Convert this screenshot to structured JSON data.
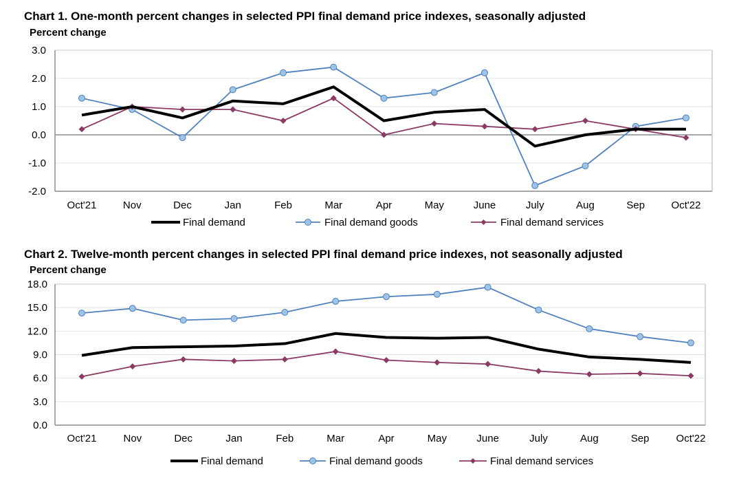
{
  "chart_data": [
    {
      "type": "line",
      "title": "Chart 1. One-month percent changes in selected PPI final demand price indexes, seasonally adjusted",
      "ylabel": "Percent change",
      "xlabel": "",
      "categories": [
        "Oct'21",
        "Nov",
        "Dec",
        "Jan",
        "Feb",
        "Mar",
        "Apr",
        "May",
        "June",
        "July",
        "Aug",
        "Sep",
        "Oct'22"
      ],
      "ylim": [
        -2.0,
        3.0
      ],
      "yticks": [
        "3.0",
        "2.0",
        "1.0",
        "0.0",
        "-1.0",
        "-2.0"
      ],
      "ytick_values": [
        3,
        2,
        1,
        0,
        -1,
        -2
      ],
      "grid": true,
      "legend_position": "bottom",
      "series": [
        {
          "name": "Final demand",
          "color": "#000000",
          "marker": "none",
          "values": [
            0.7,
            1.0,
            0.6,
            1.2,
            1.1,
            1.7,
            0.5,
            0.8,
            0.9,
            -0.4,
            0.0,
            0.2,
            0.2
          ]
        },
        {
          "name": "Final demand goods",
          "color": "#4f81bd",
          "marker": "circle",
          "marker_fill": "#9dc3e6",
          "values": [
            1.3,
            0.9,
            -0.1,
            1.6,
            2.2,
            2.4,
            1.3,
            1.5,
            2.2,
            -1.8,
            -1.1,
            0.3,
            0.6
          ]
        },
        {
          "name": "Final demand services",
          "color": "#8b3a62",
          "marker": "diamond",
          "values": [
            0.2,
            1.0,
            0.9,
            0.9,
            0.5,
            1.3,
            0.0,
            0.4,
            0.3,
            0.2,
            0.5,
            0.2,
            -0.1
          ]
        }
      ]
    },
    {
      "type": "line",
      "title": "Chart 2. Twelve-month percent changes in selected PPI final demand price indexes, not seasonally adjusted",
      "ylabel": "Percent change",
      "xlabel": "",
      "categories": [
        "Oct'21",
        "Nov",
        "Dec",
        "Jan",
        "Feb",
        "Mar",
        "Apr",
        "May",
        "June",
        "July",
        "Aug",
        "Sep",
        "Oct'22"
      ],
      "ylim": [
        0.0,
        18.0
      ],
      "yticks": [
        "18.0",
        "15.0",
        "12.0",
        "9.0",
        "6.0",
        "3.0",
        "0.0"
      ],
      "ytick_values": [
        18,
        15,
        12,
        9,
        6,
        3,
        0
      ],
      "grid": true,
      "legend_position": "bottom",
      "series": [
        {
          "name": "Final demand",
          "color": "#000000",
          "marker": "none",
          "values": [
            8.9,
            9.9,
            10.0,
            10.1,
            10.4,
            11.7,
            11.2,
            11.1,
            11.2,
            9.7,
            8.7,
            8.4,
            8.0
          ]
        },
        {
          "name": "Final demand goods",
          "color": "#4f81bd",
          "marker": "circle",
          "marker_fill": "#9dc3e6",
          "values": [
            14.3,
            14.9,
            13.4,
            13.6,
            14.4,
            15.8,
            16.4,
            16.7,
            17.6,
            14.7,
            12.3,
            11.3,
            10.5
          ]
        },
        {
          "name": "Final demand services",
          "color": "#8b3a62",
          "marker": "diamond",
          "values": [
            6.2,
            7.5,
            8.4,
            8.2,
            8.4,
            9.4,
            8.3,
            8.0,
            7.8,
            6.9,
            6.5,
            6.6,
            6.3
          ]
        }
      ]
    }
  ]
}
